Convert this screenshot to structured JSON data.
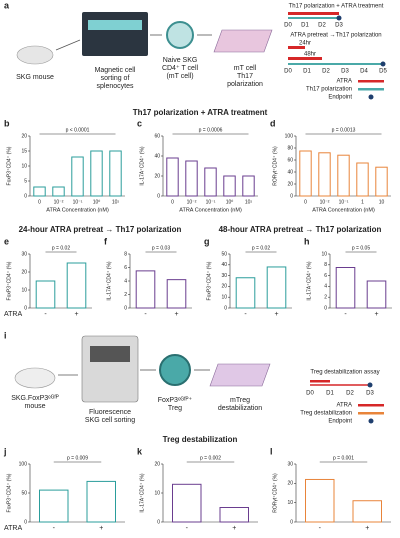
{
  "diagram": {
    "a": {
      "letter": "a",
      "mouse": "SKG mouse",
      "sorting": [
        "Magnetic cell",
        "sorting of",
        "splenocytes"
      ],
      "tcell": [
        "Naive SKG",
        "CD4⁺ T cell",
        "(mT cell)"
      ],
      "plate": [
        "mT cell",
        "Th17",
        "polarization"
      ],
      "timeline1_title": "Th17 polarization + ATRA treatment",
      "timeline1_days": [
        "D0",
        "D1",
        "D2",
        "D3"
      ],
      "timeline2_title": "ATRA pretreat →Th17 polarization",
      "durations": [
        "24hr",
        "48hr"
      ],
      "timeline2_days": [
        "D0",
        "D1",
        "D2",
        "D3",
        "D4",
        "D5"
      ],
      "legend": [
        "ATRA",
        "Th17 polarization",
        "Endpoint"
      ]
    },
    "i": {
      "letter": "i",
      "mouse": [
        "SKG.FoxP3ᵉᴳᶠᴾ",
        "mouse"
      ],
      "sorting": [
        "Fluorescence",
        "SKG cell sorting"
      ],
      "treg": [
        "FoxP3ᵉᴳᶠᴾ⁺",
        "Treg"
      ],
      "plate": [
        "mTreg",
        "destabilization"
      ],
      "timeline_title": "Treg destabilization assay",
      "timeline_days": [
        "D0",
        "D1",
        "D2",
        "D3"
      ],
      "legend": [
        "ATRA",
        "Treg destabilization",
        "Endpoint"
      ]
    }
  },
  "section_titles": [
    "Th17 polarization + ATRA treatment",
    "24-hour ATRA pretreat → Th17 polarization",
    "48-hour ATRA pretreat → Th17 polarization",
    "Treg destabilization"
  ],
  "row_labels": [
    "ATRA",
    "ATRA"
  ],
  "chart_data": [
    {
      "type": "bar",
      "panel": "b",
      "ylabel": "FoxP3⁺CD4⁺ (%)",
      "xlabel": "ATRA Concentration (nM)",
      "annotation": "p < 0.0001",
      "categories": [
        "0",
        "10⁻²",
        "10⁻¹",
        "10⁰",
        "10¹"
      ],
      "values": [
        3,
        3,
        13,
        15,
        15
      ],
      "color": "#2a9d9b",
      "ylim": [
        0,
        20
      ],
      "yticks": [
        0,
        5,
        10,
        15,
        20
      ]
    },
    {
      "type": "bar",
      "panel": "c",
      "ylabel": "IL-17A⁺CD4⁺ (%)",
      "xlabel": "ATRA Concentration (nM)",
      "annotation": "p = 0.0006",
      "categories": [
        "0",
        "10⁻²",
        "10⁻¹",
        "10⁰",
        "10¹"
      ],
      "values": [
        38,
        35,
        28,
        20,
        20
      ],
      "color": "#6a3d8f",
      "ylim": [
        0,
        60
      ],
      "yticks": [
        0,
        20,
        40,
        60
      ]
    },
    {
      "type": "bar",
      "panel": "d",
      "ylabel": "RORγt⁺CD4⁺ (%)",
      "xlabel": "ATRA Concentration (nM)",
      "annotation": "p = 0.0013",
      "categories": [
        "0",
        "10⁻²",
        "10⁻¹",
        "1",
        "10"
      ],
      "values": [
        75,
        72,
        68,
        55,
        48
      ],
      "color": "#e8843a",
      "ylim": [
        0,
        100
      ],
      "yticks": [
        0,
        20,
        40,
        60,
        80,
        100
      ]
    },
    {
      "type": "bar",
      "panel": "e",
      "ylabel": "FoxP3⁺CD4⁺ (%)",
      "annotation": "p = 0.02",
      "categories": [
        "-",
        "+"
      ],
      "values": [
        15,
        25
      ],
      "color": "#2a9d9b",
      "ylim": [
        0,
        30
      ],
      "yticks": [
        0,
        10,
        20,
        30
      ]
    },
    {
      "type": "bar",
      "panel": "f",
      "ylabel": "IL-17A⁺CD4⁺ (%)",
      "annotation": "p = 0.03",
      "categories": [
        "-",
        "+"
      ],
      "values": [
        5.5,
        4.2
      ],
      "color": "#6a3d8f",
      "ylim": [
        0,
        8
      ],
      "yticks": [
        0,
        2,
        4,
        6,
        8
      ]
    },
    {
      "type": "bar",
      "panel": "g",
      "ylabel": "FoxP3⁺CD4⁺ (%)",
      "annotation": "p = 0.02",
      "categories": [
        "-",
        "+"
      ],
      "values": [
        28,
        38
      ],
      "color": "#2a9d9b",
      "ylim": [
        0,
        50
      ],
      "yticks": [
        0,
        10,
        20,
        30,
        40,
        50
      ]
    },
    {
      "type": "bar",
      "panel": "h",
      "ylabel": "IL-17A⁺CD4⁺ (%)",
      "annotation": "p = 0.05",
      "categories": [
        "-",
        "+"
      ],
      "values": [
        7.5,
        5
      ],
      "color": "#6a3d8f",
      "ylim": [
        0,
        10
      ],
      "yticks": [
        0,
        2,
        4,
        6,
        8,
        10
      ]
    },
    {
      "type": "bar",
      "panel": "j",
      "ylabel": "FoxP3⁺CD4⁺ (%)",
      "annotation": "p = 0.009",
      "categories": [
        "-",
        "+"
      ],
      "values": [
        55,
        70
      ],
      "color": "#2a9d9b",
      "ylim": [
        0,
        100
      ],
      "yticks": [
        0,
        50,
        100
      ]
    },
    {
      "type": "bar",
      "panel": "k",
      "ylabel": "IL-17A⁺CD4⁺ (%)",
      "annotation": "p = 0.002",
      "categories": [
        "-",
        "+"
      ],
      "values": [
        13,
        5
      ],
      "color": "#6a3d8f",
      "ylim": [
        0,
        20
      ],
      "yticks": [
        0,
        10,
        20
      ]
    },
    {
      "type": "bar",
      "panel": "l",
      "ylabel": "RORγt⁺CD4⁺ (%)",
      "annotation": "p = 0.001",
      "categories": [
        "-",
        "+"
      ],
      "values": [
        22,
        11
      ],
      "color": "#e8843a",
      "ylim": [
        0,
        30
      ],
      "yticks": [
        0,
        10,
        20,
        30
      ]
    }
  ]
}
